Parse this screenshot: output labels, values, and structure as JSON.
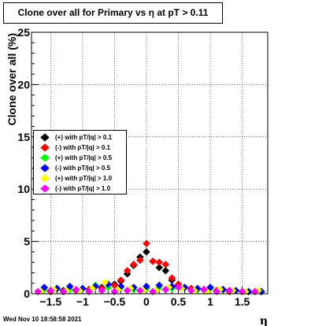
{
  "title": "Clone  over all for Primary vs   η at pT > 0.11",
  "timestamp": "Wed Nov 10 18:58:58 2021",
  "chart_data": {
    "type": "scatter",
    "xlabel": "η",
    "ylabel": "Clone  over all (%)",
    "xlim": [
      -1.8,
      1.9
    ],
    "ylim": [
      0,
      25
    ],
    "xticks": [
      -1.5,
      -1,
      -0.5,
      0,
      0.5,
      1,
      1.5
    ],
    "xtick_labels": [
      "−1.5",
      "−1",
      "−0.5",
      "0",
      "0.5",
      "1",
      "1.5"
    ],
    "yticks": [
      0,
      5,
      10,
      15,
      20,
      25
    ],
    "ytick_labels": [
      "0",
      "5",
      "10",
      "15",
      "20",
      "25"
    ],
    "grid": true,
    "legend_position": "middle-left",
    "series": [
      {
        "name": "(+) with pT/|q| > 0.1",
        "color": "#000000",
        "x": [
          -1.5,
          -1.3,
          -1.1,
          -0.9,
          -0.7,
          -0.5,
          -0.4,
          -0.3,
          -0.2,
          -0.1,
          0,
          0.1,
          0.2,
          0.3,
          0.4,
          0.5,
          0.7,
          0.9,
          1.1,
          1.3,
          1.5,
          1.7
        ],
        "y": [
          0.2,
          0.3,
          0.3,
          0.4,
          0.6,
          0.9,
          1.2,
          1.9,
          2.7,
          3.5,
          4.0,
          3.1,
          2.5,
          2.2,
          1.3,
          0.8,
          0.5,
          0.4,
          0.3,
          0.3,
          0.2,
          0.2
        ]
      },
      {
        "name": "(-) with pT/|q| > 0.1",
        "color": "#ff0000",
        "x": [
          -1.5,
          -1.3,
          -1.1,
          -0.9,
          -0.7,
          -0.5,
          -0.4,
          -0.3,
          -0.2,
          -0.1,
          0,
          0.1,
          0.2,
          0.3,
          0.4,
          0.5,
          0.7,
          0.9,
          1.1,
          1.3,
          1.5,
          1.7
        ],
        "y": [
          0.2,
          0.2,
          0.3,
          0.4,
          0.5,
          0.8,
          1.3,
          2.2,
          2.8,
          3.2,
          4.8,
          3.1,
          3.0,
          2.8,
          1.5,
          0.9,
          0.5,
          0.4,
          0.3,
          0.2,
          0.2,
          0.2
        ]
      },
      {
        "name": "(+) with pT/|q| > 0.5",
        "color": "#00ff00",
        "x": [
          -1.6,
          -1.4,
          -1.2,
          -1.0,
          -0.8,
          -0.6,
          -0.4,
          -0.2,
          0,
          0.2,
          0.4,
          0.6,
          0.8,
          1.0,
          1.2,
          1.4,
          1.6,
          1.8
        ],
        "y": [
          0.4,
          0.5,
          0.4,
          0.5,
          0.8,
          0.6,
          0.6,
          0.4,
          0.5,
          0.6,
          0.5,
          0.6,
          0.4,
          0.5,
          0.4,
          0.3,
          0.2,
          0.2
        ]
      },
      {
        "name": "(-) with pT/|q| > 0.5",
        "color": "#0000ff",
        "x": [
          -1.6,
          -1.4,
          -1.2,
          -1.0,
          -0.8,
          -0.6,
          -0.4,
          -0.2,
          0,
          0.2,
          0.4,
          0.6,
          0.8,
          1.0,
          1.2,
          1.4,
          1.6,
          1.8
        ],
        "y": [
          0.6,
          0.5,
          0.7,
          0.5,
          0.7,
          0.9,
          0.7,
          0.6,
          0.7,
          0.8,
          0.7,
          0.6,
          0.5,
          0.6,
          0.4,
          0.3,
          0.2,
          0.2
        ]
      },
      {
        "name": "(+) with pT/|q| > 1.0",
        "color": "#ffff00",
        "x": [
          -1.65,
          -1.45,
          -1.25,
          -1.05,
          -0.85,
          -0.65,
          -0.45,
          -0.25,
          -0.05,
          0.15,
          0.35,
          0.55,
          0.75,
          0.95,
          1.15,
          1.35,
          1.55,
          1.75
        ],
        "y": [
          0.2,
          0.4,
          0.3,
          0.3,
          0.5,
          1.1,
          0.4,
          0.5,
          0.3,
          0.3,
          0.6,
          0.5,
          0.3,
          0.2,
          0.4,
          0.3,
          0.2,
          0.3
        ]
      },
      {
        "name": "(-) with pT/|q| > 1.0",
        "color": "#ff00ff",
        "x": [
          -1.7,
          -1.5,
          -1.3,
          -1.1,
          -0.9,
          -0.7,
          -0.5,
          -0.3,
          -0.1,
          0.1,
          0.3,
          0.5,
          0.7,
          0.9,
          1.1,
          1.3,
          1.5,
          1.7
        ],
        "y": [
          0.2,
          0.3,
          0.2,
          0.4,
          0.2,
          0.3,
          0.2,
          0.3,
          0.3,
          0.2,
          0.4,
          0.6,
          0.3,
          0.4,
          0.2,
          0.3,
          0.2,
          0.2
        ]
      }
    ]
  }
}
